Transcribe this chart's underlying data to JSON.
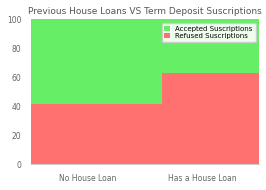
{
  "title": "Previous House Loans VS Term Deposit Suscriptions",
  "categories": [
    "No House Loan",
    "Has a House Loan"
  ],
  "refused_values": [
    42,
    63
  ],
  "accepted_values": [
    58,
    37
  ],
  "refused_color": "#FF7070",
  "accepted_color": "#66EE66",
  "ylim": [
    0,
    100
  ],
  "yticks": [
    0,
    20,
    40,
    60,
    80,
    100
  ],
  "legend_labels": [
    "Accepted Suscriptions",
    "Refused Suscriptions"
  ],
  "title_fontsize": 6.5,
  "tick_fontsize": 5.5,
  "legend_fontsize": 5.0,
  "bar_width": 0.65,
  "bar_positions": [
    0.25,
    0.75
  ],
  "xlim": [
    0.0,
    1.0
  ],
  "background_color": "#ffffff"
}
